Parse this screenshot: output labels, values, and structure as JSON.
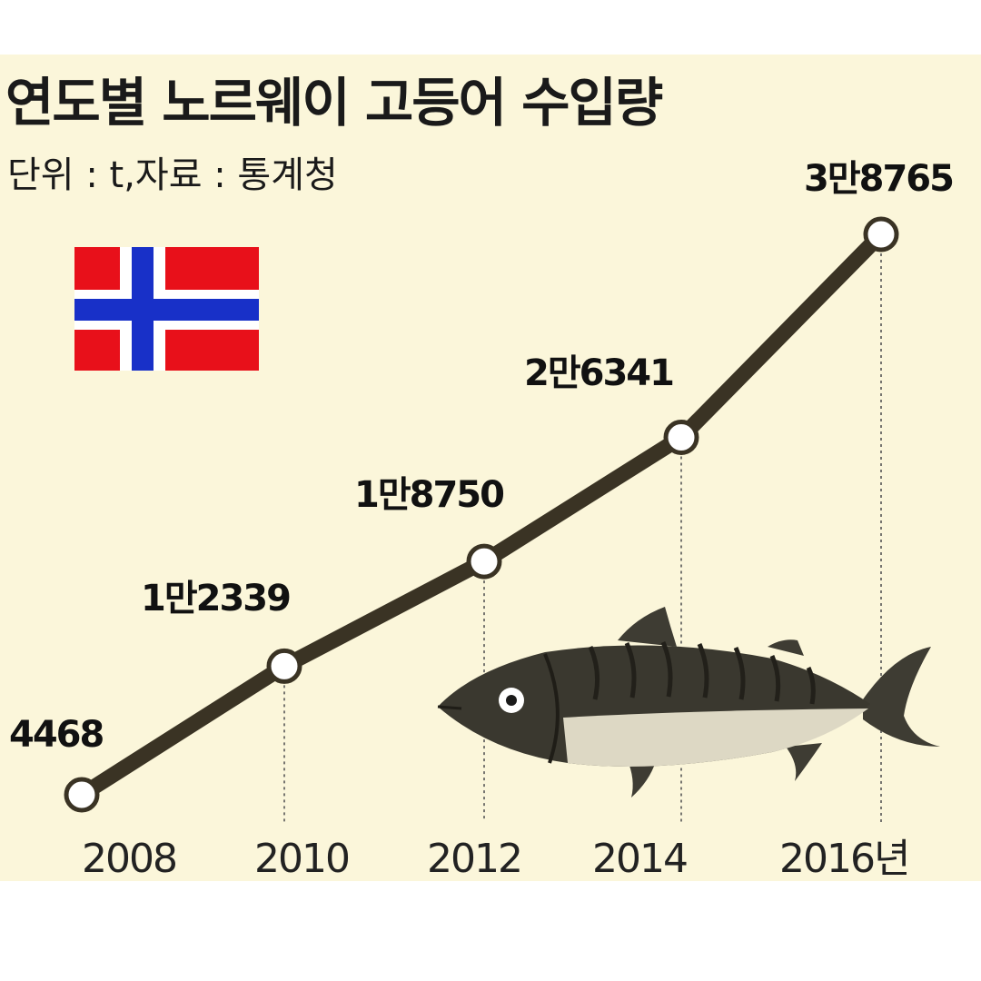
{
  "chart_data": {
    "type": "line",
    "title": "연도별 노르웨이 고등어 수입량",
    "subtitle": "단위 : t,자료 : 통계청",
    "x": [
      "2008",
      "2010",
      "2012",
      "2014",
      "2016"
    ],
    "x_labels": [
      "2008",
      "2010",
      "2012",
      "2014",
      "2016년"
    ],
    "values": [
      4468,
      12339,
      18750,
      26341,
      38765
    ],
    "value_labels": [
      "4468",
      "1만2339",
      "1만8750",
      "2만6341",
      "3만8765"
    ],
    "grid": false,
    "legend": "none"
  },
  "colors": {
    "background": "#fbf6da",
    "line": "#3a3324",
    "marker_fill": "#ffffff",
    "flag_red": "#e8101a",
    "flag_blue": "#1830c8"
  },
  "icons": [
    "norway-flag-icon",
    "mackerel-fish-icon"
  ]
}
